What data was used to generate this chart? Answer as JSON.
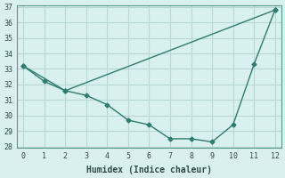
{
  "xlabel": "Humidex (Indice chaleur)",
  "line1_x": [
    0,
    1,
    2,
    3,
    4,
    5,
    6,
    7,
    8,
    9,
    10,
    11,
    12
  ],
  "line1_y": [
    33.2,
    32.2,
    31.6,
    31.3,
    30.7,
    29.7,
    29.4,
    28.5,
    28.5,
    28.3,
    29.4,
    33.3,
    36.8
  ],
  "line2_x": [
    0,
    2,
    12
  ],
  "line2_y": [
    33.2,
    31.6,
    36.8
  ],
  "line_color": "#2e7d6e",
  "background_color": "#d8f0f0",
  "grid_color": "#b8d8d8",
  "ylim": [
    28,
    37
  ],
  "xlim": [
    -0.3,
    12.3
  ],
  "yticks": [
    28,
    29,
    30,
    31,
    32,
    33,
    34,
    35,
    36,
    37
  ],
  "xticks": [
    0,
    1,
    2,
    3,
    4,
    5,
    6,
    7,
    8,
    9,
    10,
    11,
    12
  ]
}
